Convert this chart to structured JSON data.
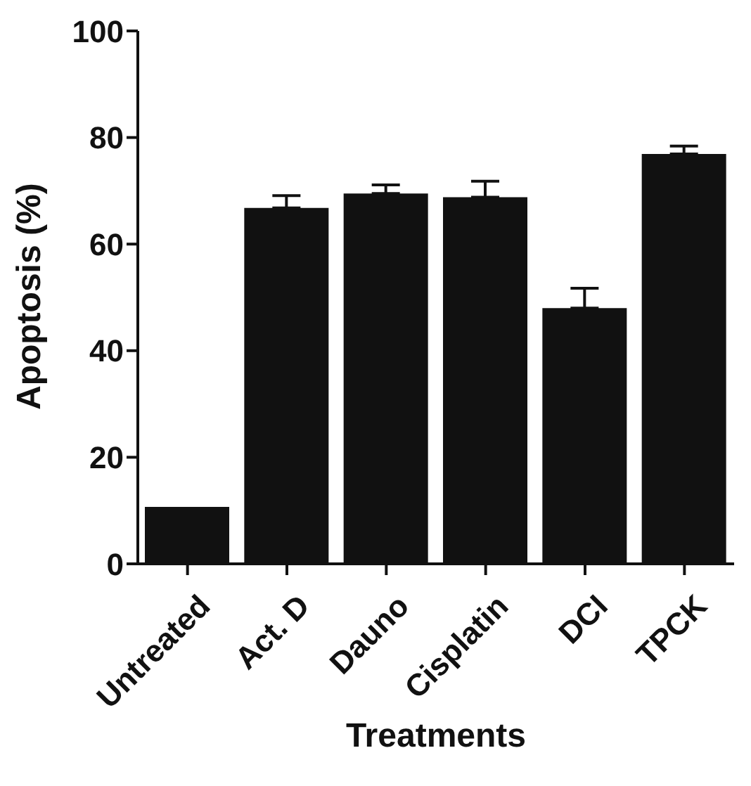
{
  "chart_data": {
    "type": "bar",
    "xlabel": "Treatments",
    "ylabel": "Apoptosis (%)",
    "categories": [
      "Untreated",
      "Act. D",
      "Dauno",
      "Cisplatin",
      "DCI",
      "TPCK"
    ],
    "values": [
      10.7,
      66.8,
      69.5,
      68.8,
      48.0,
      76.9
    ],
    "errors": [
      null,
      2.3,
      1.6,
      3.0,
      3.7,
      1.5
    ],
    "color": "#111111",
    "ylim": [
      0,
      100
    ],
    "yticks": [
      0,
      20,
      40,
      60,
      80,
      100
    ],
    "grid": false
  }
}
